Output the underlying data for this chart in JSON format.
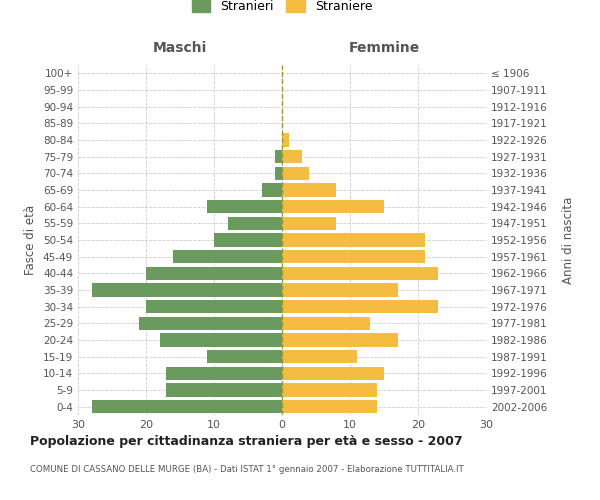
{
  "age_groups": [
    "0-4",
    "5-9",
    "10-14",
    "15-19",
    "20-24",
    "25-29",
    "30-34",
    "35-39",
    "40-44",
    "45-49",
    "50-54",
    "55-59",
    "60-64",
    "65-69",
    "70-74",
    "75-79",
    "80-84",
    "85-89",
    "90-94",
    "95-99",
    "100+"
  ],
  "birth_years": [
    "2002-2006",
    "1997-2001",
    "1992-1996",
    "1987-1991",
    "1982-1986",
    "1977-1981",
    "1972-1976",
    "1967-1971",
    "1962-1966",
    "1957-1961",
    "1952-1956",
    "1947-1951",
    "1942-1946",
    "1937-1941",
    "1932-1936",
    "1927-1931",
    "1922-1926",
    "1917-1921",
    "1912-1916",
    "1907-1911",
    "≤ 1906"
  ],
  "maschi": [
    28,
    17,
    17,
    11,
    18,
    21,
    20,
    28,
    20,
    16,
    10,
    8,
    11,
    3,
    1,
    1,
    0,
    0,
    0,
    0,
    0
  ],
  "femmine": [
    14,
    14,
    15,
    11,
    17,
    13,
    23,
    17,
    23,
    21,
    21,
    8,
    15,
    8,
    4,
    3,
    1,
    0,
    0,
    0,
    0
  ],
  "maschi_color": "#6a9a5e",
  "femmine_color": "#f5bc42",
  "background_color": "#ffffff",
  "grid_color": "#cccccc",
  "title": "Popolazione per cittadinanza straniera per età e sesso - 2007",
  "subtitle": "COMUNE DI CASSANO DELLE MURGE (BA) - Dati ISTAT 1° gennaio 2007 - Elaborazione TUTTITALIA.IT",
  "ylabel_left": "Fasce di età",
  "ylabel_right": "Anni di nascita",
  "xlabel_left": "Maschi",
  "xlabel_right": "Femmine",
  "legend_maschi": "Stranieri",
  "legend_femmine": "Straniere",
  "xlim": 30,
  "bar_height": 0.8
}
